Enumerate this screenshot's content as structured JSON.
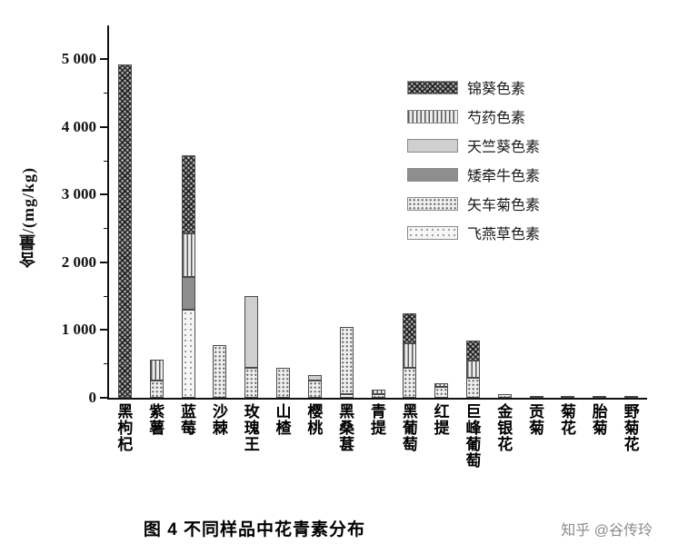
{
  "figure": {
    "caption": "图 4  不同样品中花青素分布",
    "watermark": "知乎 @谷传玲"
  },
  "chart_data": {
    "type": "bar",
    "stacked": true,
    "title": "图 4 不同样品中花青素分布",
    "xlabel": "",
    "ylabel": "含量/(mg/kg)",
    "ylim": [
      0,
      5500
    ],
    "grid": false,
    "legend_position": "inside upper right",
    "y_ticks": [
      0,
      1000,
      2000,
      3000,
      4000,
      5000
    ],
    "y_tick_labels": [
      "0",
      "1 000",
      "2 000",
      "3 000",
      "4 000",
      "5 000"
    ],
    "y_minor_ticks": [
      500,
      1500,
      2500,
      3500,
      4500
    ],
    "categories": [
      "黑枸杞",
      "紫薯",
      "蓝莓",
      "沙棘",
      "玫瑰王",
      "山楂",
      "樱桃",
      "黑桑葚",
      "青提",
      "黑葡萄",
      "红提",
      "巨峰葡萄",
      "金银花",
      "贡菊",
      "菊花",
      "胎菊",
      "野菊花"
    ],
    "series": [
      {
        "name": "锦葵色素",
        "pattern": "crosshatch",
        "values": [
          4920,
          0,
          1150,
          0,
          0,
          0,
          0,
          0,
          0,
          450,
          0,
          300,
          0,
          0,
          0,
          0,
          0
        ]
      },
      {
        "name": "芍药色素",
        "pattern": "vstripes",
        "values": [
          0,
          320,
          650,
          0,
          0,
          0,
          0,
          0,
          60,
          350,
          60,
          250,
          0,
          0,
          0,
          0,
          0
        ]
      },
      {
        "name": "天竺葵色素",
        "pattern": "solid-light",
        "values": [
          0,
          0,
          0,
          0,
          1050,
          0,
          80,
          0,
          0,
          0,
          0,
          0,
          0,
          0,
          0,
          0,
          0
        ]
      },
      {
        "name": "矮牵牛色素",
        "pattern": "solid-dark",
        "values": [
          0,
          0,
          480,
          0,
          0,
          0,
          0,
          0,
          0,
          0,
          0,
          0,
          0,
          0,
          0,
          0,
          0
        ]
      },
      {
        "name": "矢车菊色素",
        "pattern": "dots",
        "values": [
          0,
          250,
          0,
          780,
          450,
          450,
          250,
          1000,
          60,
          450,
          160,
          300,
          50,
          25,
          20,
          15,
          30
        ]
      },
      {
        "name": "飞燕草色素",
        "pattern": "dots-light",
        "values": [
          0,
          0,
          1300,
          0,
          0,
          0,
          0,
          50,
          0,
          0,
          0,
          0,
          0,
          0,
          0,
          0,
          0
        ]
      }
    ],
    "stack_order_bottom_to_top": [
      "飞燕草色素",
      "矢车菊色素",
      "矮牵牛色素",
      "天竺葵色素",
      "芍药色素",
      "锦葵色素"
    ],
    "totals": [
      4920,
      570,
      3580,
      780,
      1500,
      450,
      330,
      1050,
      120,
      1250,
      220,
      850,
      50,
      25,
      20,
      15,
      30
    ],
    "colors": {
      "axis": "#111111",
      "bar_outline": "#4a4a4a",
      "watermark_gray": "#8c8c8c"
    }
  }
}
